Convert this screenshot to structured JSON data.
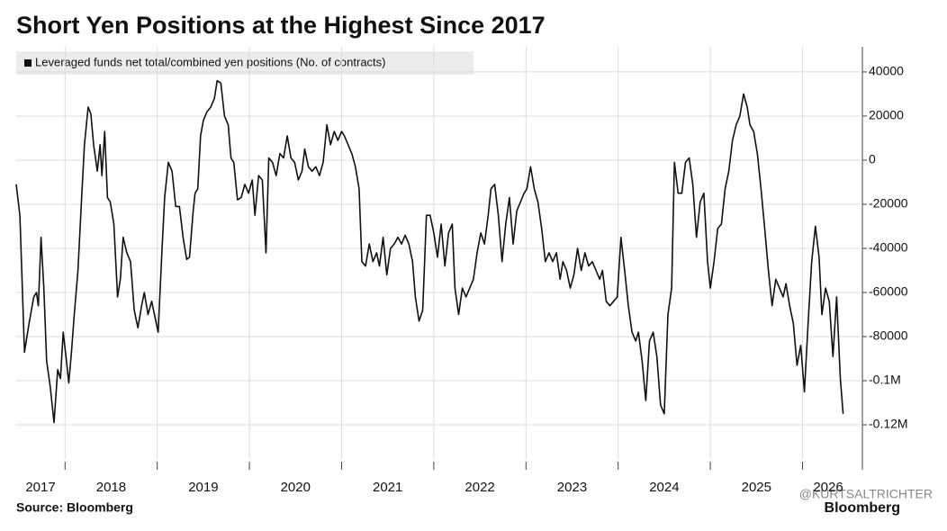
{
  "chart_data": {
    "type": "line",
    "title": "Short Yen Positions at the Highest Since 2017",
    "source": "Source: Bloomberg",
    "brand": "Bloomberg",
    "watermark": "@KURTSALTRICHTER",
    "year_labels": [
      "2017",
      "2018",
      "2019",
      "2020",
      "2021",
      "2022",
      "2023",
      "2024",
      "2025",
      "2026"
    ],
    "xgrid": [
      2018,
      2019,
      2020,
      2021,
      2022,
      2023,
      2024,
      2025,
      2026
    ],
    "xlim": [
      2017.47,
      2026.62
    ],
    "ylim": [
      -135500,
      51400
    ],
    "yticks": [
      40000,
      20000,
      0,
      -20000,
      -40000,
      -60000,
      -80000,
      {
        "value": -100000,
        "label": "-0.1M"
      },
      {
        "value": -120000,
        "label": "-0.12M"
      }
    ],
    "grid": true,
    "x": [
      2017.47,
      2017.51,
      2017.56,
      2017.61,
      2017.66,
      2017.69,
      2017.71,
      2017.74,
      2017.77,
      2017.8,
      2017.84,
      2017.88,
      2017.92,
      2017.95,
      2017.98,
      2018.01,
      2018.04,
      2018.07,
      2018.1,
      2018.14,
      2018.18,
      2018.21,
      2018.25,
      2018.28,
      2018.31,
      2018.35,
      2018.38,
      2018.4,
      2018.43,
      2018.46,
      2018.49,
      2018.53,
      2018.57,
      2018.6,
      2018.63,
      2018.67,
      2018.71,
      2018.75,
      2018.79,
      2018.83,
      2018.86,
      2018.9,
      2018.94,
      2018.98,
      2019.01,
      2019.05,
      2019.08,
      2019.12,
      2019.16,
      2019.2,
      2019.24,
      2019.28,
      2019.32,
      2019.35,
      2019.39,
      2019.41,
      2019.44,
      2019.47,
      2019.5,
      2019.54,
      2019.58,
      2019.62,
      2019.65,
      2019.69,
      2019.73,
      2019.77,
      2019.8,
      2019.83,
      2019.87,
      2019.91,
      2019.95,
      2019.99,
      2020.03,
      2020.06,
      2020.1,
      2020.14,
      2020.18,
      2020.21,
      2020.25,
      2020.29,
      2020.33,
      2020.37,
      2020.41,
      2020.45,
      2020.49,
      2020.53,
      2020.57,
      2020.6,
      2020.64,
      2020.68,
      2020.72,
      2020.76,
      2020.8,
      2020.84,
      2020.88,
      2020.92,
      2020.96,
      2021.0,
      2021.03,
      2021.07,
      2021.11,
      2021.15,
      2021.19,
      2021.22,
      2021.26,
      2021.3,
      2021.34,
      2021.38,
      2021.41,
      2021.45,
      2021.49,
      2021.53,
      2021.57,
      2021.61,
      2021.65,
      2021.69,
      2021.73,
      2021.77,
      2021.8,
      2021.84,
      2021.88,
      2021.92,
      2021.96,
      2022.0,
      2022.04,
      2022.08,
      2022.12,
      2022.16,
      2022.2,
      2022.23,
      2022.27,
      2022.31,
      2022.35,
      2022.39,
      2022.43,
      2022.47,
      2022.51,
      2022.55,
      2022.59,
      2022.62,
      2022.66,
      2022.7,
      2022.74,
      2022.78,
      2022.82,
      2022.86,
      2022.9,
      2022.94,
      2022.98,
      2023.01,
      2023.05,
      2023.09,
      2023.13,
      2023.17,
      2023.21,
      2023.25,
      2023.29,
      2023.33,
      2023.37,
      2023.4,
      2023.44,
      2023.48,
      2023.52,
      2023.56,
      2023.6,
      2023.64,
      2023.68,
      2023.72,
      2023.76,
      2023.8,
      2023.83,
      2023.87,
      2023.91,
      2023.95,
      2023.99,
      2024.03,
      2024.07,
      2024.11,
      2024.15,
      2024.19,
      2024.22,
      2024.26,
      2024.3,
      2024.34,
      2024.38,
      2024.42,
      2024.46,
      2024.5,
      2024.54,
      2024.58,
      2024.61,
      2024.65,
      2024.69,
      2024.73,
      2024.77,
      2024.81,
      2024.85,
      2024.89,
      2024.93,
      2024.97,
      2025.0,
      2025.04,
      2025.08,
      2025.12,
      2025.16,
      2025.2,
      2025.24,
      2025.28,
      2025.32,
      2025.36,
      2025.4,
      2025.43,
      2025.47,
      2025.51,
      2025.55,
      2025.59,
      2025.63,
      2025.67,
      2025.71,
      2025.75,
      2025.79,
      2025.82,
      2025.86,
      2025.9,
      2025.94,
      2025.98,
      2026.02,
      2026.06,
      2026.1,
      2026.14,
      2026.18,
      2026.21,
      2026.25,
      2026.29,
      2026.33,
      2026.37,
      2026.41,
      2026.44
    ],
    "series": [
      {
        "name": "Leveraged funds net total/combined yen positions (No. of contracts)",
        "color": "#111111",
        "values": [
          -11000,
          -25000,
          -87000,
          -74000,
          -62000,
          -60000,
          -66000,
          -35000,
          -58000,
          -91000,
          -103000,
          -119000,
          -95000,
          -99000,
          -78000,
          -89000,
          -101000,
          -87000,
          -70000,
          -50000,
          -17000,
          7000,
          24000,
          21000,
          7000,
          -5000,
          7000,
          -7000,
          13000,
          -17000,
          -19000,
          -29000,
          -62000,
          -54000,
          -35000,
          -42000,
          -46000,
          -68000,
          -76000,
          -66000,
          -60000,
          -70000,
          -64000,
          -72000,
          -78000,
          -42000,
          -17000,
          -1000,
          -5000,
          -21000,
          -21000,
          -35000,
          -45000,
          -44000,
          -23000,
          -15000,
          -13000,
          11000,
          18000,
          22000,
          24000,
          28000,
          36000,
          35000,
          20000,
          16000,
          1000,
          -1000,
          -18000,
          -17000,
          -11000,
          -15000,
          -9000,
          -25000,
          -7000,
          -9000,
          -42000,
          1000,
          -1000,
          -7000,
          3000,
          1000,
          11000,
          1000,
          -1000,
          -9000,
          -5000,
          5000,
          -3000,
          -5000,
          -3000,
          -7000,
          -1000,
          16000,
          7000,
          13000,
          9000,
          13000,
          11000,
          7000,
          3000,
          -3000,
          -13000,
          -46000,
          -48000,
          -38000,
          -46000,
          -42000,
          -48000,
          -35000,
          -52000,
          -40000,
          -38000,
          -35000,
          -38000,
          -34000,
          -38000,
          -46000,
          -62000,
          -73000,
          -68000,
          -25000,
          -25000,
          -33000,
          -44000,
          -29000,
          -48000,
          -33000,
          -29000,
          -58000,
          -70000,
          -58000,
          -62000,
          -58000,
          -54000,
          -42000,
          -33000,
          -38000,
          -25000,
          -13000,
          -11000,
          -25000,
          -46000,
          -29000,
          -17000,
          -38000,
          -23000,
          -19000,
          -15000,
          -13000,
          -3000,
          -13000,
          -19000,
          -31000,
          -46000,
          -42000,
          -46000,
          -42000,
          -54000,
          -46000,
          -50000,
          -58000,
          -52000,
          -40000,
          -50000,
          -42000,
          -48000,
          -46000,
          -50000,
          -54000,
          -50000,
          -64000,
          -66000,
          -64000,
          -62000,
          -35000,
          -50000,
          -66000,
          -78000,
          -82000,
          -78000,
          -91000,
          -109000,
          -82000,
          -78000,
          -89000,
          -111000,
          -115000,
          -70000,
          -58000,
          -1000,
          -15000,
          -15000,
          -1000,
          1000,
          -11000,
          -35000,
          -19000,
          -15000,
          -46000,
          -58000,
          -46000,
          -31000,
          -29000,
          -13000,
          -5000,
          9000,
          16000,
          20000,
          30000,
          24000,
          16000,
          13000,
          3000,
          -13000,
          -31000,
          -50000,
          -66000,
          -54000,
          -58000,
          -62000,
          -56000,
          -66000,
          -74000,
          -93000,
          -84000,
          -105000,
          -74000,
          -46000,
          -30000,
          -44000,
          -70000,
          -58000,
          -64000,
          -89000,
          -62000,
          -99000,
          -115000
        ]
      }
    ]
  }
}
